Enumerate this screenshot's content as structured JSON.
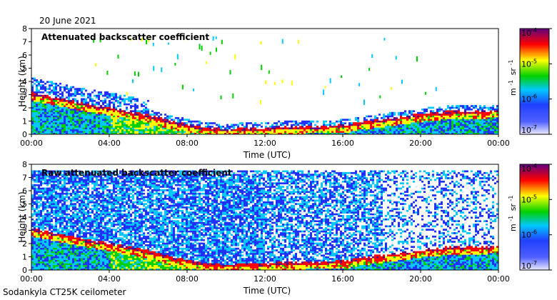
{
  "header": {
    "date": "20 June 2021"
  },
  "footer": {
    "instrument": "Sodankyla CT25K ceilometer"
  },
  "chart_data": [
    {
      "type": "heatmap",
      "title": "Attenuated backscatter coefficient",
      "xlabel": "Time (UTC)",
      "ylabel": "Height (km)",
      "x_ticks": [
        "00:00",
        "04:00",
        "08:00",
        "12:00",
        "16:00",
        "20:00",
        "00:00"
      ],
      "y_ticks": [
        "0",
        "1",
        "2",
        "3",
        "4",
        "5",
        "6",
        "7",
        "8"
      ],
      "ylim": [
        0,
        8
      ],
      "xlim_hours": [
        0,
        24
      ],
      "colorbar": {
        "label_base": "m",
        "label_exp1": "-1",
        "label_unit": "sr",
        "label_exp2": "-1",
        "ticks": [
          {
            "base": "10",
            "exp": "-7"
          },
          {
            "base": "10",
            "exp": "-6"
          },
          {
            "base": "10",
            "exp": "-5"
          },
          {
            "base": "10",
            "exp": "-4"
          }
        ],
        "log_scale": true
      },
      "boundary_layer_top_km": [
        [
          0,
          3.0
        ],
        [
          1,
          2.7
        ],
        [
          2,
          2.4
        ],
        [
          3,
          2.1
        ],
        [
          4,
          1.9
        ],
        [
          5,
          1.6
        ],
        [
          6,
          1.3
        ],
        [
          7,
          0.9
        ],
        [
          8,
          0.6
        ],
        [
          9,
          0.3
        ],
        [
          10,
          0.25
        ],
        [
          11,
          0.3
        ],
        [
          12,
          0.35
        ],
        [
          13,
          0.45
        ],
        [
          14,
          0.5
        ],
        [
          15,
          0.5
        ],
        [
          16,
          0.55
        ],
        [
          17,
          0.8
        ],
        [
          18,
          1.0
        ],
        [
          19,
          1.2
        ],
        [
          20,
          1.4
        ],
        [
          21,
          1.55
        ],
        [
          22,
          1.65
        ],
        [
          23,
          1.65
        ],
        [
          24,
          1.7
        ]
      ],
      "colormap": [
        "#e8e8ff",
        "#2030ff",
        "#00c8ff",
        "#00d000",
        "#ffff00",
        "#ff0000",
        "#600080"
      ]
    },
    {
      "type": "heatmap",
      "title": "Raw attenuated backscatter coefficient",
      "xlabel": "Time (UTC)",
      "ylabel": "Height (km)",
      "x_ticks": [
        "00:00",
        "04:00",
        "08:00",
        "12:00",
        "16:00",
        "20:00",
        "00:00"
      ],
      "y_ticks": [
        "0",
        "1",
        "2",
        "3",
        "4",
        "5",
        "6",
        "7",
        "8"
      ],
      "ylim": [
        0,
        8
      ],
      "xlim_hours": [
        0,
        24
      ],
      "colorbar": {
        "label_base": "m",
        "label_exp1": "-1",
        "label_unit": "sr",
        "label_exp2": "-1",
        "ticks": [
          {
            "base": "10",
            "exp": "-7"
          },
          {
            "base": "10",
            "exp": "-6"
          },
          {
            "base": "10",
            "exp": "-5"
          },
          {
            "base": "10",
            "exp": "-4"
          }
        ],
        "log_scale": true
      },
      "colormap": [
        "#e8e8ff",
        "#2030ff",
        "#00c8ff",
        "#00d000",
        "#ffff00",
        "#ff0000",
        "#600080"
      ]
    }
  ]
}
